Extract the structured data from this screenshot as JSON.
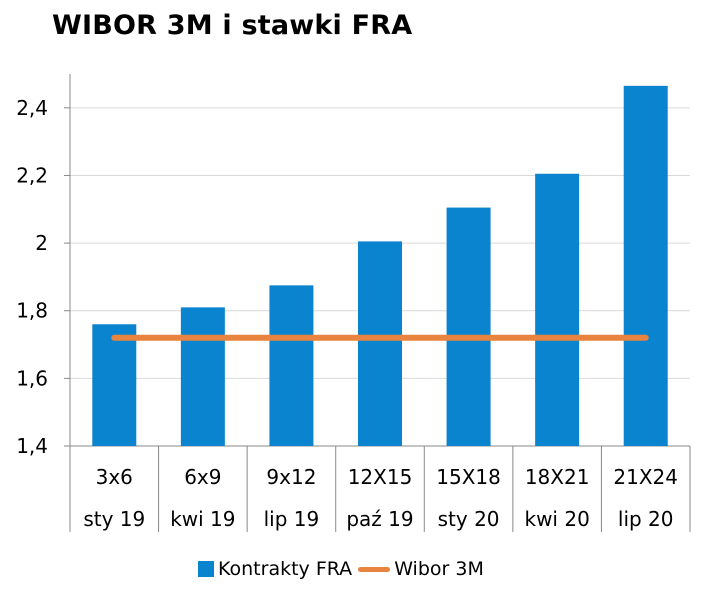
{
  "chart_data": {
    "type": "bar",
    "title": "WIBOR 3M i stawki FRA",
    "categories": [
      {
        "contract": "3x6",
        "date": "sty 19"
      },
      {
        "contract": "6x9",
        "date": "kwi 19"
      },
      {
        "contract": "9x12",
        "date": "lip 19"
      },
      {
        "contract": "12X15",
        "date": "paź 19"
      },
      {
        "contract": "15X18",
        "date": "sty 20"
      },
      {
        "contract": "18X21",
        "date": "kwi 20"
      },
      {
        "contract": "21X24",
        "date": "lip 20"
      }
    ],
    "series": [
      {
        "name": "Kontrakty FRA",
        "type": "bar",
        "color": "#0a84cf",
        "values": [
          1.76,
          1.81,
          1.875,
          2.005,
          2.105,
          2.205,
          2.465
        ]
      },
      {
        "name": "Wibor 3M",
        "type": "line",
        "color": "#e8843f",
        "values": [
          1.72,
          1.72,
          1.72,
          1.72,
          1.72,
          1.72,
          1.72
        ]
      }
    ],
    "ylim": [
      1.4,
      2.5
    ],
    "yticks": [
      {
        "value": 1.4,
        "label": "1,4"
      },
      {
        "value": 1.6,
        "label": "1,6"
      },
      {
        "value": 1.8,
        "label": "1,8"
      },
      {
        "value": 2.0,
        "label": "2"
      },
      {
        "value": 2.2,
        "label": "2,2"
      },
      {
        "value": 2.4,
        "label": "2,4"
      }
    ],
    "grid": true,
    "legend_position": "bottom"
  }
}
